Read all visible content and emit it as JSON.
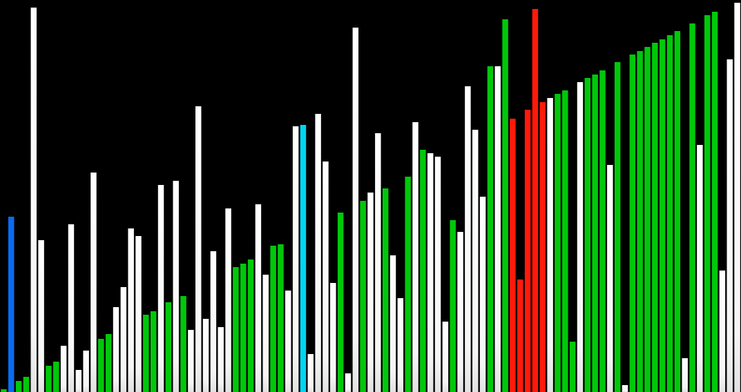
{
  "chart_data": {
    "type": "bar",
    "ylim": [
      0,
      568
    ],
    "grid": false,
    "legend": "none",
    "colors": {
      "background": "#000000",
      "default": "#f4f4f4",
      "sorted": "#00c80a",
      "pivot": "#0a6cf0",
      "current": "#00d6f2",
      "active": "#ff1a0a"
    },
    "values": [
      4,
      254,
      16,
      22,
      557,
      220,
      38,
      44,
      67,
      243,
      32,
      60,
      318,
      77,
      84,
      123,
      152,
      237,
      226,
      112,
      117,
      300,
      130,
      306,
      139,
      90,
      414,
      106,
      204,
      94,
      266,
      181,
      186,
      192,
      272,
      170,
      212,
      214,
      147,
      385,
      387,
      55,
      403,
      334,
      158,
      260,
      27,
      528,
      277,
      289,
      375,
      295,
      198,
      136,
      312,
      391,
      351,
      346,
      341,
      102,
      249,
      232,
      443,
      380,
      283,
      472,
      472,
      540,
      396,
      163,
      409,
      555,
      420,
      426,
      432,
      437,
      73,
      449,
      455,
      460,
      466,
      329,
      478,
      10,
      489,
      494,
      500,
      506,
      511,
      517,
      523,
      49,
      534,
      358,
      546,
      551,
      176,
      482,
      564
    ],
    "states": [
      "sorted",
      "pivot",
      "sorted",
      "sorted",
      "default",
      "default",
      "sorted",
      "sorted",
      "default",
      "default",
      "default",
      "default",
      "default",
      "sorted",
      "sorted",
      "default",
      "default",
      "default",
      "default",
      "sorted",
      "sorted",
      "default",
      "sorted",
      "default",
      "sorted",
      "default",
      "default",
      "default",
      "default",
      "default",
      "default",
      "sorted",
      "sorted",
      "sorted",
      "default",
      "default",
      "sorted",
      "sorted",
      "default",
      "default",
      "current",
      "default",
      "default",
      "default",
      "default",
      "sorted",
      "default",
      "default",
      "sorted",
      "default",
      "default",
      "sorted",
      "default",
      "default",
      "sorted",
      "default",
      "sorted",
      "default",
      "default",
      "default",
      "sorted",
      "default",
      "default",
      "default",
      "default",
      "sorted",
      "default",
      "sorted",
      "active",
      "active",
      "active",
      "active",
      "active",
      "default",
      "sorted",
      "sorted",
      "sorted",
      "default",
      "sorted",
      "sorted",
      "sorted",
      "default",
      "sorted",
      "default",
      "sorted",
      "sorted",
      "sorted",
      "sorted",
      "sorted",
      "sorted",
      "sorted",
      "default",
      "sorted",
      "default",
      "sorted",
      "sorted",
      "default",
      "default",
      "default"
    ]
  }
}
